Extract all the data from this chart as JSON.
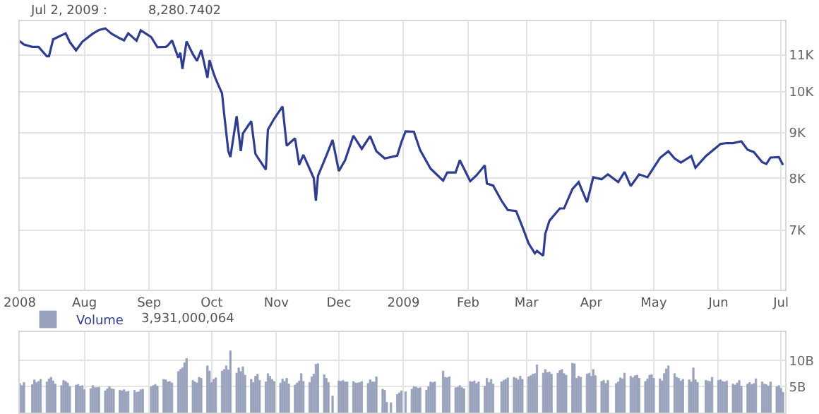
{
  "chart_data": [
    {
      "type": "line",
      "color": "#2e3d8f",
      "log": true,
      "grid": true,
      "ylim": [
        6000,
        12000
      ],
      "yticks": [
        {
          "value": 7000,
          "label": "7K"
        },
        {
          "value": 8000,
          "label": "8K"
        },
        {
          "value": 9000,
          "label": "9K"
        },
        {
          "value": 10000,
          "label": "10K"
        },
        {
          "value": 11000,
          "label": "11K"
        }
      ],
      "xlim": [
        "2008-07-01",
        "2009-07-03"
      ],
      "xticks": [
        {
          "value": "2008-07-01",
          "label": "2008"
        },
        {
          "value": "2008-08-01",
          "label": "Aug"
        },
        {
          "value": "2008-09-01",
          "label": "Sep"
        },
        {
          "value": "2008-10-01",
          "label": "Oct"
        },
        {
          "value": "2008-11-01",
          "label": "Nov"
        },
        {
          "value": "2008-12-01",
          "label": "Dec"
        },
        {
          "value": "2009-01-01",
          "label": "2009"
        },
        {
          "value": "2009-02-01",
          "label": "Feb"
        },
        {
          "value": "2009-03-01",
          "label": "Mar"
        },
        {
          "value": "2009-04-01",
          "label": "Apr"
        },
        {
          "value": "2009-05-01",
          "label": "May"
        },
        {
          "value": "2009-06-01",
          "label": "Jun"
        },
        {
          "value": "2009-07-01",
          "label": "Jul"
        }
      ],
      "annotations": [
        "Jul 2, 2009 :",
        "8,280.7402"
      ],
      "x": [
        "2008-07-01",
        "2008-07-03",
        "2008-07-07",
        "2008-07-10",
        "2008-07-14",
        "2008-07-15",
        "2008-07-17",
        "2008-07-23",
        "2008-07-25",
        "2008-07-28",
        "2008-07-31",
        "2008-08-05",
        "2008-08-08",
        "2008-08-11",
        "2008-08-14",
        "2008-08-18",
        "2008-08-20",
        "2008-08-22",
        "2008-08-26",
        "2008-08-28",
        "2008-09-02",
        "2008-09-05",
        "2008-09-09",
        "2008-09-10",
        "2008-09-12",
        "2008-09-15",
        "2008-09-16",
        "2008-09-17",
        "2008-09-19",
        "2008-09-22",
        "2008-09-24",
        "2008-09-26",
        "2008-09-29",
        "2008-09-30",
        "2008-10-02",
        "2008-10-03",
        "2008-10-06",
        "2008-10-07",
        "2008-10-09",
        "2008-10-10",
        "2008-10-13",
        "2008-10-15",
        "2008-10-16",
        "2008-10-20",
        "2008-10-22",
        "2008-10-24",
        "2008-10-27",
        "2008-10-28",
        "2008-10-31",
        "2008-11-04",
        "2008-11-06",
        "2008-11-10",
        "2008-11-12",
        "2008-11-14",
        "2008-11-19",
        "2008-11-20",
        "2008-11-21",
        "2008-11-25",
        "2008-11-28",
        "2008-12-01",
        "2008-12-04",
        "2008-12-08",
        "2008-12-12",
        "2008-12-16",
        "2008-12-19",
        "2008-12-23",
        "2008-12-29",
        "2008-12-31",
        "2009-01-02",
        "2009-01-06",
        "2009-01-09",
        "2009-01-14",
        "2009-01-20",
        "2009-01-22",
        "2009-01-26",
        "2009-01-28",
        "2009-02-02",
        "2009-02-05",
        "2009-02-09",
        "2009-02-10",
        "2009-02-13",
        "2009-02-17",
        "2009-02-20",
        "2009-02-24",
        "2009-02-27",
        "2009-03-02",
        "2009-03-05",
        "2009-03-06",
        "2009-03-09",
        "2009-03-10",
        "2009-03-12",
        "2009-03-17",
        "2009-03-19",
        "2009-03-23",
        "2009-03-26",
        "2009-03-30",
        "2009-04-02",
        "2009-04-06",
        "2009-04-09",
        "2009-04-14",
        "2009-04-17",
        "2009-04-20",
        "2009-04-24",
        "2009-04-28",
        "2009-05-04",
        "2009-05-08",
        "2009-05-11",
        "2009-05-14",
        "2009-05-19",
        "2009-05-21",
        "2009-05-26",
        "2009-06-02",
        "2009-06-05",
        "2009-06-08",
        "2009-06-12",
        "2009-06-15",
        "2009-06-18",
        "2009-06-22",
        "2009-06-24",
        "2009-06-26",
        "2009-06-30",
        "2009-07-02"
      ],
      "values": [
        11400,
        11300,
        11230,
        11230,
        10960,
        10960,
        11450,
        11630,
        11370,
        11130,
        11380,
        11620,
        11730,
        11780,
        11620,
        11480,
        11420,
        11630,
        11410,
        11720,
        11520,
        11220,
        11230,
        11270,
        11420,
        10920,
        11060,
        10610,
        11390,
        11020,
        10830,
        11140,
        10370,
        10850,
        10480,
        10330,
        9960,
        9450,
        8580,
        8450,
        9390,
        8580,
        8980,
        9270,
        8520,
        8380,
        8180,
        9070,
        9330,
        9630,
        8700,
        8870,
        8280,
        8500,
        8000,
        7550,
        8050,
        8480,
        8830,
        8150,
        8380,
        8930,
        8630,
        8920,
        8580,
        8420,
        8480,
        8780,
        9030,
        9020,
        8600,
        8200,
        7950,
        8120,
        8120,
        8380,
        7940,
        8060,
        8270,
        7890,
        7850,
        7550,
        7370,
        7350,
        7060,
        6760,
        6590,
        6630,
        6550,
        6930,
        7170,
        7400,
        7400,
        7780,
        7920,
        7520,
        8020,
        7980,
        8080,
        7920,
        8130,
        7840,
        8080,
        8020,
        8430,
        8580,
        8420,
        8330,
        8470,
        8220,
        8470,
        8740,
        8760,
        8760,
        8800,
        8610,
        8560,
        8340,
        8300,
        8440,
        8450,
        8280
      ]
    },
    {
      "type": "bar",
      "grid": true,
      "legend": "top left",
      "tick_labels": "y",
      "ylim": [
        0,
        15.5
      ],
      "yticks": [
        {
          "value": 5,
          "label": "5B"
        },
        {
          "value": 10,
          "label": "10B"
        }
      ],
      "xlim": [
        "2008-07-01",
        "2009-07-03"
      ],
      "xticks": [
        {
          "value": "2008-07-01",
          "label": null
        },
        {
          "value": "2008-08-01",
          "label": null
        },
        {
          "value": "2008-09-01",
          "label": null
        },
        {
          "value": "2008-10-01",
          "label": null
        },
        {
          "value": "2008-11-01",
          "label": null
        },
        {
          "value": "2008-12-01",
          "label": null
        },
        {
          "value": "2009-01-01",
          "label": null
        },
        {
          "value": "2009-02-01",
          "label": null
        },
        {
          "value": "2009-03-01",
          "label": null
        },
        {
          "value": "2009-04-01",
          "label": null
        },
        {
          "value": "2009-05-01",
          "label": null
        },
        {
          "value": "2009-06-01",
          "label": null
        },
        {
          "value": "2009-07-01",
          "label": null
        }
      ],
      "annotations": [
        "3,931,000,064"
      ],
      "x": [
        "2008-07-01",
        "2008-07-02",
        "2008-07-03",
        "2008-07-07",
        "2008-07-08",
        "2008-07-09",
        "2008-07-10",
        "2008-07-11",
        "2008-07-14",
        "2008-07-15",
        "2008-07-16",
        "2008-07-17",
        "2008-07-18",
        "2008-07-21",
        "2008-07-22",
        "2008-07-23",
        "2008-07-24",
        "2008-07-25",
        "2008-07-28",
        "2008-07-29",
        "2008-07-30",
        "2008-07-31",
        "2008-08-01",
        "2008-08-04",
        "2008-08-05",
        "2008-08-06",
        "2008-08-07",
        "2008-08-08",
        "2008-08-11",
        "2008-08-12",
        "2008-08-13",
        "2008-08-14",
        "2008-08-15",
        "2008-08-18",
        "2008-08-19",
        "2008-08-20",
        "2008-08-21",
        "2008-08-22",
        "2008-08-25",
        "2008-08-26",
        "2008-08-27",
        "2008-08-28",
        "2008-08-29",
        "2008-09-02",
        "2008-09-03",
        "2008-09-04",
        "2008-09-05",
        "2008-09-08",
        "2008-09-09",
        "2008-09-10",
        "2008-09-11",
        "2008-09-12",
        "2008-09-15",
        "2008-09-16",
        "2008-09-17",
        "2008-09-18",
        "2008-09-19",
        "2008-09-22",
        "2008-09-23",
        "2008-09-24",
        "2008-09-25",
        "2008-09-26",
        "2008-09-29",
        "2008-09-30",
        "2008-10-01",
        "2008-10-02",
        "2008-10-03",
        "2008-10-06",
        "2008-10-07",
        "2008-10-08",
        "2008-10-09",
        "2008-10-10",
        "2008-10-13",
        "2008-10-14",
        "2008-10-15",
        "2008-10-16",
        "2008-10-17",
        "2008-10-20",
        "2008-10-21",
        "2008-10-22",
        "2008-10-23",
        "2008-10-24",
        "2008-10-27",
        "2008-10-28",
        "2008-10-29",
        "2008-10-30",
        "2008-10-31",
        "2008-11-03",
        "2008-11-04",
        "2008-11-05",
        "2008-11-06",
        "2008-11-07",
        "2008-11-10",
        "2008-11-11",
        "2008-11-12",
        "2008-11-13",
        "2008-11-14",
        "2008-11-17",
        "2008-11-18",
        "2008-11-19",
        "2008-11-20",
        "2008-11-21",
        "2008-11-24",
        "2008-11-25",
        "2008-11-26",
        "2008-11-28",
        "2008-12-01",
        "2008-12-02",
        "2008-12-03",
        "2008-12-04",
        "2008-12-05",
        "2008-12-08",
        "2008-12-09",
        "2008-12-10",
        "2008-12-11",
        "2008-12-12",
        "2008-12-15",
        "2008-12-16",
        "2008-12-17",
        "2008-12-18",
        "2008-12-19",
        "2008-12-22",
        "2008-12-23",
        "2008-12-24",
        "2008-12-26",
        "2008-12-29",
        "2008-12-30",
        "2008-12-31",
        "2009-01-02",
        "2009-01-05",
        "2009-01-06",
        "2009-01-07",
        "2009-01-08",
        "2009-01-09",
        "2009-01-12",
        "2009-01-13",
        "2009-01-14",
        "2009-01-15",
        "2009-01-16",
        "2009-01-20",
        "2009-01-21",
        "2009-01-22",
        "2009-01-23",
        "2009-01-26",
        "2009-01-27",
        "2009-01-28",
        "2009-01-29",
        "2009-01-30",
        "2009-02-02",
        "2009-02-03",
        "2009-02-04",
        "2009-02-05",
        "2009-02-06",
        "2009-02-09",
        "2009-02-10",
        "2009-02-11",
        "2009-02-12",
        "2009-02-13",
        "2009-02-17",
        "2009-02-18",
        "2009-02-19",
        "2009-02-20",
        "2009-02-23",
        "2009-02-24",
        "2009-02-25",
        "2009-02-26",
        "2009-02-27",
        "2009-03-02",
        "2009-03-03",
        "2009-03-04",
        "2009-03-05",
        "2009-03-06",
        "2009-03-09",
        "2009-03-10",
        "2009-03-11",
        "2009-03-12",
        "2009-03-13",
        "2009-03-16",
        "2009-03-17",
        "2009-03-18",
        "2009-03-19",
        "2009-03-20",
        "2009-03-23",
        "2009-03-24",
        "2009-03-25",
        "2009-03-26",
        "2009-03-27",
        "2009-03-30",
        "2009-03-31",
        "2009-04-01",
        "2009-04-02",
        "2009-04-03",
        "2009-04-06",
        "2009-04-07",
        "2009-04-08",
        "2009-04-09",
        "2009-04-13",
        "2009-04-14",
        "2009-04-15",
        "2009-04-16",
        "2009-04-17",
        "2009-04-20",
        "2009-04-21",
        "2009-04-22",
        "2009-04-23",
        "2009-04-24",
        "2009-04-27",
        "2009-04-28",
        "2009-04-29",
        "2009-04-30",
        "2009-05-01",
        "2009-05-04",
        "2009-05-05",
        "2009-05-06",
        "2009-05-07",
        "2009-05-08",
        "2009-05-11",
        "2009-05-12",
        "2009-05-13",
        "2009-05-14",
        "2009-05-15",
        "2009-05-18",
        "2009-05-19",
        "2009-05-20",
        "2009-05-21",
        "2009-05-22",
        "2009-05-26",
        "2009-05-27",
        "2009-05-28",
        "2009-05-29",
        "2009-06-01",
        "2009-06-02",
        "2009-06-03",
        "2009-06-04",
        "2009-06-05",
        "2009-06-08",
        "2009-06-09",
        "2009-06-10",
        "2009-06-11",
        "2009-06-12",
        "2009-06-15",
        "2009-06-16",
        "2009-06-17",
        "2009-06-18",
        "2009-06-19",
        "2009-06-22",
        "2009-06-23",
        "2009-06-24",
        "2009-06-25",
        "2009-06-26",
        "2009-06-29",
        "2009-06-30",
        "2009-07-01",
        "2009-07-02"
      ],
      "series": [
        {
          "name": "Volume",
          "color": "#98a1bb",
          "values": [
            5.6,
            5.2,
            5.8,
            5.4,
            6.3,
            5.8,
            6.0,
            6.4,
            5.9,
            6.5,
            6.8,
            6.1,
            5.5,
            5.2,
            6.2,
            6.0,
            5.7,
            5.0,
            5.3,
            5.4,
            5.1,
            5.2,
            4.4,
            4.6,
            5.2,
            4.8,
            4.8,
            4.9,
            4.2,
            4.6,
            5.0,
            4.6,
            4.5,
            4.3,
            4.2,
            4.4,
            4.0,
            4.1,
            4.3,
            3.9,
            4.0,
            4.4,
            4.5,
            5.0,
            5.2,
            5.4,
            5.1,
            6.4,
            6.3,
            5.9,
            6.0,
            5.7,
            7.9,
            8.3,
            8.6,
            9.6,
            10.4,
            6.2,
            5.9,
            5.7,
            6.8,
            6.6,
            9.0,
            8.0,
            5.8,
            6.4,
            6.7,
            8.0,
            8.3,
            9.0,
            8.2,
            11.9,
            7.6,
            8.6,
            7.9,
            8.8,
            7.2,
            6.4,
            5.8,
            7.0,
            7.4,
            6.2,
            5.9,
            7.5,
            7.0,
            6.4,
            6.0,
            5.7,
            6.5,
            6.0,
            6.6,
            5.5,
            5.3,
            5.7,
            6.1,
            7.5,
            6.0,
            5.8,
            6.9,
            7.4,
            9.3,
            9.4,
            7.3,
            6.6,
            5.8,
            3.2,
            6.1,
            6.0,
            6.2,
            5.9,
            5.9,
            6.0,
            5.7,
            5.7,
            5.8,
            6.0,
            5.6,
            6.3,
            5.9,
            5.9,
            6.9,
            4.5,
            4.3,
            2.0,
            1.9,
            3.5,
            3.8,
            4.2,
            4.0,
            4.5,
            5.0,
            4.9,
            4.7,
            4.8,
            4.3,
            5.0,
            5.9,
            5.8,
            5.9,
            8.0,
            6.8,
            6.7,
            6.9,
            4.8,
            4.9,
            5.2,
            4.8,
            4.6,
            6.0,
            5.9,
            6.1,
            5.6,
            5.9,
            5.1,
            6.6,
            5.8,
            6.4,
            5.5,
            5.9,
            6.2,
            6.4,
            6.7,
            6.8,
            6.6,
            6.3,
            7.0,
            6.4,
            6.9,
            7.1,
            7.4,
            7.5,
            9.2,
            7.6,
            8.3,
            7.7,
            7.8,
            7.4,
            7.6,
            8.1,
            8.3,
            7.5,
            7.2,
            9.5,
            9.4,
            6.6,
            7.0,
            6.8,
            7.4,
            7.6,
            7.0,
            8.3,
            7.1,
            6.0,
            6.2,
            5.6,
            6.2,
            5.6,
            5.9,
            6.7,
            6.5,
            7.6,
            7.0,
            6.7,
            7.1,
            7.2,
            6.6,
            6.0,
            6.5,
            7.2,
            7.3,
            6.6,
            6.5,
            6.1,
            7.5,
            8.4,
            9.0,
            7.5,
            6.8,
            6.6,
            6.1,
            6.4,
            6.3,
            5.9,
            8.6,
            6.3,
            5.8,
            6.2,
            6.1,
            6.0,
            6.8,
            6.2,
            6.3,
            6.0,
            5.9,
            6.1,
            5.5,
            5.3,
            5.7,
            6.2,
            5.1,
            5.5,
            5.8,
            5.4,
            5.6,
            6.5,
            5.9,
            5.5,
            5.4,
            5.1,
            5.9,
            5.0,
            5.2,
            4.7,
            3.9
          ]
        }
      ]
    }
  ]
}
